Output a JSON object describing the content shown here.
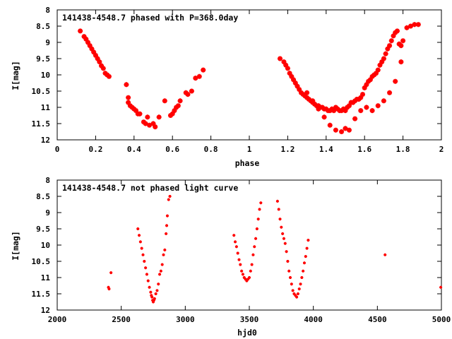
{
  "chart_data": [
    {
      "type": "scatter",
      "title": "141438-4548.7 phased with P=368.0day",
      "xlabel": "phase",
      "ylabel": "I[mag]",
      "xlim": [
        0,
        2
      ],
      "ylim": [
        8,
        12
      ],
      "y_inverted": true,
      "x_ticks": [
        "0",
        "0.2",
        "0.4",
        "0.6",
        "0.8",
        "1",
        "1.2",
        "1.4",
        "1.6",
        "1.8",
        "2"
      ],
      "x_tick_values": [
        0,
        0.2,
        0.4,
        0.6,
        0.8,
        1,
        1.2,
        1.4,
        1.6,
        1.8,
        2
      ],
      "y_ticks": [
        "8",
        "8.5",
        "9",
        "9.5",
        "10",
        "10.5",
        "11",
        "11.5",
        "12"
      ],
      "y_tick_values": [
        8,
        8.5,
        9,
        9.5,
        10,
        10.5,
        11,
        11.5,
        12
      ],
      "grid": false,
      "marker": "plus",
      "color": "#ff0000",
      "series": [
        {
          "x": [
            0.12,
            0.14,
            0.15,
            0.16,
            0.17,
            0.18,
            0.19,
            0.2,
            0.21,
            0.22,
            0.23,
            0.24,
            0.25,
            0.26,
            0.27,
            0.36,
            0.37,
            0.37,
            0.38,
            0.39,
            0.4,
            0.41,
            0.42,
            0.43,
            0.45,
            0.46,
            0.47,
            0.48,
            0.5,
            0.51,
            0.53,
            0.56,
            0.59,
            0.6,
            0.61,
            0.62,
            0.63,
            0.64,
            0.67,
            0.68,
            0.7,
            0.72,
            0.74,
            0.76,
            1.16,
            1.18,
            1.19,
            1.2,
            1.21,
            1.22,
            1.23,
            1.24,
            1.25,
            1.26,
            1.27,
            1.28,
            1.29,
            1.3,
            1.31,
            1.32,
            1.33,
            1.34,
            1.35,
            1.36,
            1.37,
            1.38,
            1.39,
            1.4,
            1.41,
            1.42,
            1.43,
            1.44,
            1.45,
            1.46,
            1.47,
            1.48,
            1.49,
            1.5,
            1.51,
            1.52,
            1.53,
            1.54,
            1.55,
            1.56,
            1.57,
            1.58,
            1.59,
            1.6,
            1.61,
            1.62,
            1.63,
            1.64,
            1.65,
            1.66,
            1.67,
            1.68,
            1.69,
            1.7,
            1.71,
            1.72,
            1.73,
            1.74,
            1.75,
            1.76,
            1.77,
            1.78,
            1.79,
            1.8,
            1.82,
            1.84,
            1.86,
            1.88,
            1.3,
            1.33,
            1.36,
            1.39,
            1.42,
            1.45,
            1.48,
            1.5,
            1.52,
            1.55,
            1.58,
            1.61,
            1.64,
            1.67,
            1.7,
            1.73,
            1.76,
            1.79
          ],
          "y": [
            8.65,
            8.82,
            8.9,
            9.0,
            9.1,
            9.2,
            9.3,
            9.4,
            9.5,
            9.6,
            9.72,
            9.8,
            9.95,
            10.0,
            10.05,
            10.3,
            10.7,
            10.85,
            10.95,
            11.0,
            11.05,
            11.1,
            11.2,
            11.2,
            11.45,
            11.5,
            11.3,
            11.55,
            11.5,
            11.6,
            11.3,
            10.8,
            11.25,
            11.2,
            11.1,
            11.0,
            10.95,
            10.8,
            10.55,
            10.6,
            10.5,
            10.1,
            10.05,
            9.85,
            9.5,
            9.6,
            9.7,
            9.8,
            9.95,
            10.05,
            10.15,
            10.25,
            10.35,
            10.45,
            10.55,
            10.6,
            10.65,
            10.7,
            10.75,
            10.8,
            10.85,
            10.9,
            10.95,
            10.95,
            11.0,
            11.0,
            11.05,
            11.05,
            11.1,
            11.1,
            11.05,
            11.1,
            11.0,
            11.05,
            11.1,
            11.1,
            11.05,
            11.1,
            11.0,
            10.95,
            10.85,
            10.85,
            10.8,
            10.75,
            10.75,
            10.7,
            10.6,
            10.4,
            10.3,
            10.2,
            10.15,
            10.05,
            10.0,
            9.95,
            9.85,
            9.7,
            9.6,
            9.5,
            9.35,
            9.2,
            9.1,
            8.95,
            8.8,
            8.7,
            8.65,
            9.05,
            9.1,
            8.95,
            8.55,
            8.5,
            8.45,
            8.45,
            10.55,
            10.8,
            11.05,
            11.3,
            11.55,
            11.7,
            11.75,
            11.65,
            11.7,
            11.35,
            11.1,
            11.0,
            11.1,
            10.95,
            10.8,
            10.55,
            10.2,
            9.6
          ]
        }
      ]
    },
    {
      "type": "scatter",
      "title": "141438-4548.7 not phased light curve",
      "xlabel": "hjd0",
      "ylabel": "I[mag]",
      "xlim": [
        2000,
        5000
      ],
      "ylim": [
        8,
        12
      ],
      "y_inverted": true,
      "x_ticks": [
        "2000",
        "2500",
        "3000",
        "3500",
        "4000",
        "4500",
        "5000"
      ],
      "x_tick_values": [
        2000,
        2500,
        3000,
        3500,
        4000,
        4500,
        5000
      ],
      "y_ticks": [
        "8",
        "8.5",
        "9",
        "9.5",
        "10",
        "10.5",
        "11",
        "11.5",
        "12"
      ],
      "y_tick_values": [
        8,
        8.5,
        9,
        9.5,
        10,
        10.5,
        11,
        11.5,
        12
      ],
      "grid": false,
      "marker": "plus",
      "color": "#ff0000",
      "series": [
        {
          "x": [
            2400,
            2405,
            2420,
            2630,
            2640,
            2650,
            2660,
            2670,
            2680,
            2690,
            2700,
            2710,
            2720,
            2730,
            2735,
            2740,
            2745,
            2750,
            2755,
            2760,
            2770,
            2780,
            2790,
            2800,
            2810,
            2820,
            2830,
            2840,
            2850,
            2855,
            2860,
            2870,
            2880,
            3380,
            3390,
            3400,
            3410,
            3420,
            3430,
            3440,
            3450,
            3460,
            3470,
            3480,
            3490,
            3500,
            3510,
            3520,
            3530,
            3540,
            3550,
            3560,
            3570,
            3580,
            3590,
            3720,
            3730,
            3740,
            3750,
            3760,
            3770,
            3780,
            3790,
            3800,
            3810,
            3820,
            3830,
            3840,
            3850,
            3860,
            3870,
            3880,
            3890,
            3900,
            3910,
            3920,
            3930,
            3940,
            3950,
            3960,
            4560,
            4995
          ],
          "y": [
            11.3,
            11.35,
            10.85,
            9.5,
            9.7,
            9.9,
            10.1,
            10.3,
            10.5,
            10.7,
            10.9,
            11.1,
            11.3,
            11.45,
            11.55,
            11.6,
            11.7,
            11.75,
            11.7,
            11.65,
            11.5,
            11.4,
            11.2,
            10.9,
            10.8,
            10.6,
            10.3,
            10.15,
            9.65,
            9.4,
            9.1,
            8.6,
            8.5,
            9.7,
            9.9,
            10.05,
            10.25,
            10.45,
            10.6,
            10.8,
            10.9,
            11.0,
            11.05,
            11.1,
            11.05,
            11.0,
            10.8,
            10.6,
            10.3,
            10.05,
            9.8,
            9.5,
            9.2,
            8.9,
            8.7,
            8.65,
            8.9,
            9.2,
            9.45,
            9.65,
            9.8,
            9.95,
            10.2,
            10.5,
            10.8,
            11.0,
            11.2,
            11.4,
            11.5,
            11.55,
            11.6,
            11.5,
            11.35,
            11.2,
            11.0,
            10.8,
            10.55,
            10.35,
            10.1,
            9.85,
            10.3,
            11.3
          ]
        }
      ]
    }
  ]
}
